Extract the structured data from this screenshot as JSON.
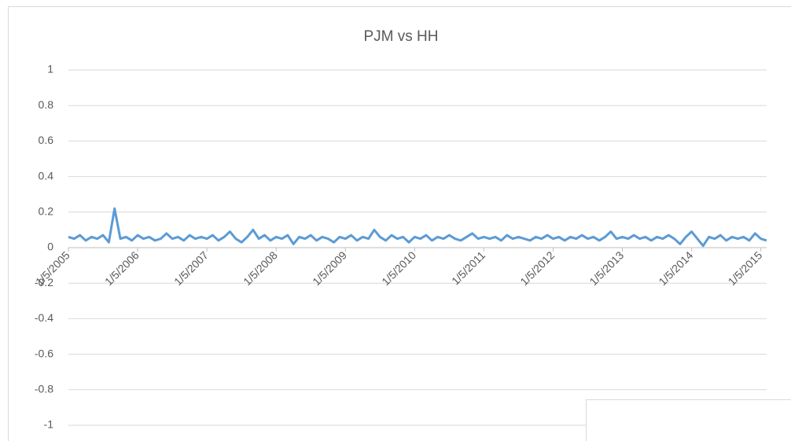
{
  "chart_data": {
    "type": "line",
    "title": "PJM vs HH",
    "categories": [
      "1/5/2005",
      null,
      null,
      null,
      null,
      null,
      null,
      null,
      null,
      null,
      null,
      null,
      "1/5/2006",
      null,
      null,
      null,
      null,
      null,
      null,
      null,
      null,
      null,
      null,
      null,
      "1/5/2007",
      null,
      null,
      null,
      null,
      null,
      null,
      null,
      null,
      null,
      null,
      null,
      "1/5/2008",
      null,
      null,
      null,
      null,
      null,
      null,
      null,
      null,
      null,
      null,
      null,
      "1/5/2009",
      null,
      null,
      null,
      null,
      null,
      null,
      null,
      null,
      null,
      null,
      null,
      "1/5/2010",
      null,
      null,
      null,
      null,
      null,
      null,
      null,
      null,
      null,
      null,
      null,
      "1/5/2011",
      null,
      null,
      null,
      null,
      null,
      null,
      null,
      null,
      null,
      null,
      null,
      "1/5/2012",
      null,
      null,
      null,
      null,
      null,
      null,
      null,
      null,
      null,
      null,
      null,
      "1/5/2013",
      null,
      null,
      null,
      null,
      null,
      null,
      null,
      null,
      null,
      null,
      null,
      "1/5/2014",
      null,
      null,
      null,
      null,
      null,
      null,
      null,
      null,
      null,
      null,
      null,
      "1/5/2015",
      null
    ],
    "values": [
      0.06,
      0.05,
      0.07,
      0.04,
      0.06,
      0.05,
      0.07,
      0.03,
      0.22,
      0.05,
      0.06,
      0.04,
      0.07,
      0.05,
      0.06,
      0.04,
      0.05,
      0.08,
      0.05,
      0.06,
      0.04,
      0.07,
      0.05,
      0.06,
      0.05,
      0.07,
      0.04,
      0.06,
      0.09,
      0.05,
      0.03,
      0.06,
      0.1,
      0.05,
      0.07,
      0.04,
      0.06,
      0.05,
      0.07,
      0.02,
      0.06,
      0.05,
      0.07,
      0.04,
      0.06,
      0.05,
      0.03,
      0.06,
      0.05,
      0.07,
      0.04,
      0.06,
      0.05,
      0.1,
      0.06,
      0.04,
      0.07,
      0.05,
      0.06,
      0.03,
      0.06,
      0.05,
      0.07,
      0.04,
      0.06,
      0.05,
      0.07,
      0.05,
      0.04,
      0.06,
      0.08,
      0.05,
      0.06,
      0.05,
      0.06,
      0.04,
      0.07,
      0.05,
      0.06,
      0.05,
      0.04,
      0.06,
      0.05,
      0.07,
      0.05,
      0.06,
      0.04,
      0.06,
      0.05,
      0.07,
      0.05,
      0.06,
      0.04,
      0.06,
      0.09,
      0.05,
      0.06,
      0.05,
      0.07,
      0.05,
      0.06,
      0.04,
      0.06,
      0.05,
      0.07,
      0.05,
      0.02,
      0.06,
      0.09,
      0.05,
      0.01,
      0.06,
      0.05,
      0.07,
      0.04,
      0.06,
      0.05,
      0.06,
      0.04,
      0.08,
      0.05,
      0.04
    ],
    "color": "#5b9bd5",
    "ylim": [
      -1,
      1
    ],
    "yticks": [
      -1,
      -0.8,
      -0.6,
      -0.4,
      -0.2,
      0,
      0.2,
      0.4,
      0.6,
      0.8,
      1
    ],
    "grid": true
  }
}
